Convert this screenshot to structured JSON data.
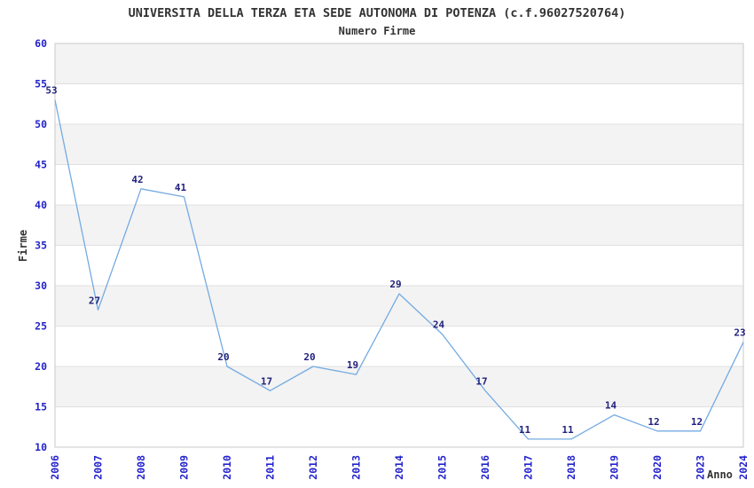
{
  "chart": {
    "title": "UNIVERSITA DELLA TERZA ETA SEDE AUTONOMA DI POTENZA (c.f.96027520764)",
    "subtitle": "Numero Firme",
    "ylabel": "Firme",
    "xlabel": "Anno"
  },
  "chart_data": {
    "type": "line",
    "title": "UNIVERSITA DELLA TERZA ETA SEDE AUTONOMA DI POTENZA (c.f.96027520764)",
    "subtitle": "Numero Firme",
    "xlabel": "Anno",
    "ylabel": "Firme",
    "categories": [
      "2006",
      "2007",
      "2008",
      "2009",
      "2010",
      "2011",
      "2012",
      "2013",
      "2014",
      "2015",
      "2016",
      "2017",
      "2018",
      "2019",
      "2020",
      "2023",
      "2024"
    ],
    "values": [
      53,
      27,
      42,
      41,
      20,
      17,
      20,
      19,
      29,
      24,
      17,
      11,
      11,
      14,
      12,
      12,
      23
    ],
    "ylim": [
      10,
      60
    ],
    "yticks": [
      10,
      15,
      20,
      25,
      30,
      35,
      40,
      45,
      50,
      55,
      60
    ],
    "grid": true,
    "legend_position": "none",
    "band_fill_ranges": [
      [
        15,
        20
      ],
      [
        25,
        30
      ],
      [
        35,
        40
      ],
      [
        45,
        50
      ],
      [
        55,
        60
      ]
    ],
    "colors": {
      "line": "#74abe2",
      "tick_label": "#2424cc",
      "data_label": "#22227d",
      "band": "#f3f3f3",
      "gridline": "#e0e0e0",
      "plot_border": "#c9c9c9",
      "axis_text": "#333333",
      "background": "#ffffff"
    }
  }
}
